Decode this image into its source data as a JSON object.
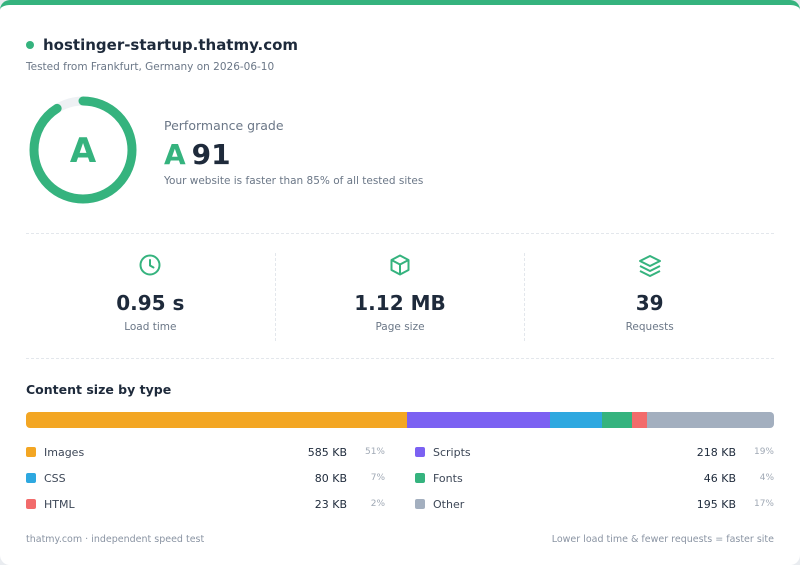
{
  "header": {
    "domain": "hostinger-startup.thatmy.com",
    "tested": "Tested from Frankfurt, Germany on 2026-06-10"
  },
  "grade": {
    "ring_letter": "A",
    "label": "Performance grade",
    "letter": "A",
    "score": "91",
    "score_fraction": 0.91,
    "description": "Your website is faster than 85% of all tested sites",
    "accent_color": "#35b37e"
  },
  "metrics": [
    {
      "icon": "clock-icon",
      "value": "0.95 s",
      "label": "Load time"
    },
    {
      "icon": "box-icon",
      "value": "1.12 MB",
      "label": "Page size"
    },
    {
      "icon": "layers-icon",
      "value": "39",
      "label": "Requests"
    }
  ],
  "content": {
    "title": "Content size by type",
    "types": [
      {
        "name": "Images",
        "size": "585 KB",
        "pct": "51%",
        "share": 51,
        "color": "#f3a623"
      },
      {
        "name": "Scripts",
        "size": "218 KB",
        "pct": "19%",
        "share": 19,
        "color": "#7b61f2"
      },
      {
        "name": "CSS",
        "size": "80 KB",
        "pct": "7%",
        "share": 7,
        "color": "#2ea8e0"
      },
      {
        "name": "Fonts",
        "size": "46 KB",
        "pct": "4%",
        "share": 4,
        "color": "#35b37e"
      },
      {
        "name": "HTML",
        "size": "23 KB",
        "pct": "2%",
        "share": 2,
        "color": "#f26b6b"
      },
      {
        "name": "Other",
        "size": "195 KB",
        "pct": "17%",
        "share": 17,
        "color": "#a3afbf"
      }
    ]
  },
  "footer": {
    "left": "thatmy.com · independent speed test",
    "right": "Lower load time & fewer requests = faster site"
  }
}
